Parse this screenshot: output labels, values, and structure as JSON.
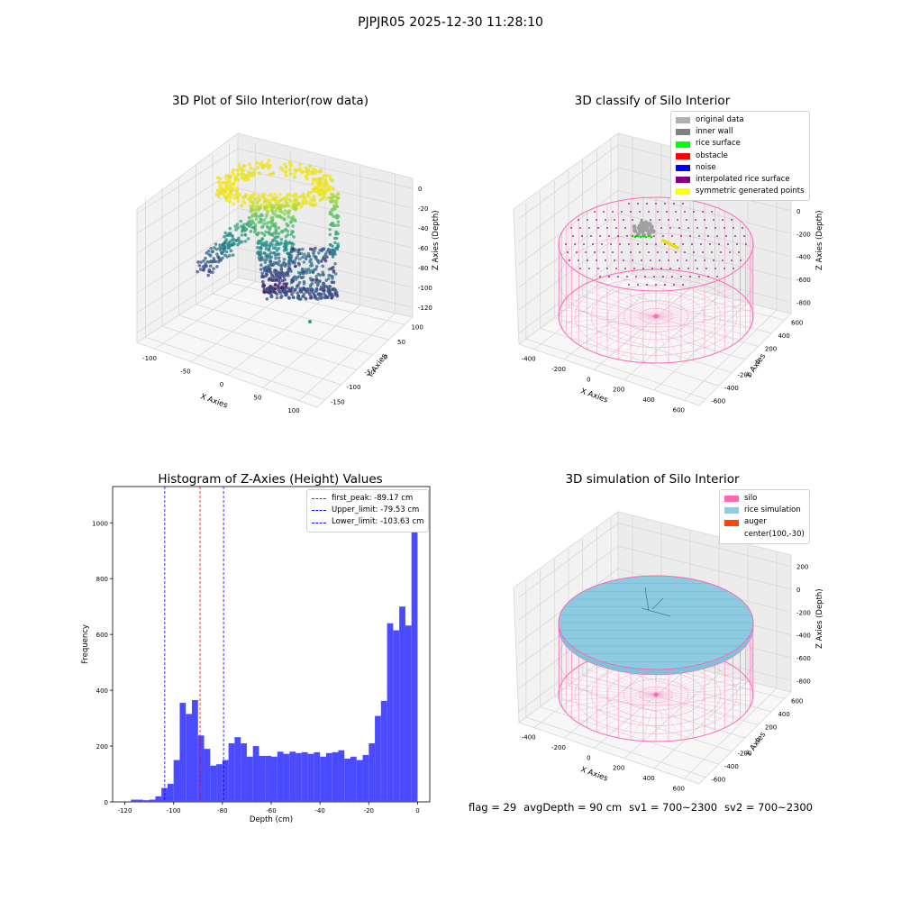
{
  "suptitle": "PJPJR05 2025-12-30 11:28:10",
  "chart_data": [
    {
      "type": "scatter",
      "title": "3D Plot of Silo Interior(row data)",
      "xlabel": "X Axies",
      "ylabel": "Y Axies",
      "zlabel": "Z Axies (Depth)",
      "xticks": [
        "-100",
        "-50",
        "0",
        "50",
        "100"
      ],
      "yticks": [
        "100",
        "50",
        "0",
        "-50",
        "-100",
        "-150"
      ],
      "zticks": [
        "0",
        "-20",
        "-40",
        "-60",
        "-80",
        "-100",
        "-120"
      ],
      "colormap": "viridis"
    },
    {
      "type": "scatter",
      "title": "3D classify of Silo Interior",
      "xlabel": "X Axies",
      "ylabel": "Y Axies",
      "zlabel": "Z Axies (Depth)",
      "xticks": [
        "-400",
        "-200",
        "0",
        "200",
        "400",
        "600"
      ],
      "yticks": [
        "600",
        "400",
        "200",
        "0",
        "-200",
        "-400",
        "-600"
      ],
      "zticks": [
        "200",
        "0",
        "-200",
        "-400",
        "-600",
        "-800"
      ],
      "legend": [
        {
          "label": "original data",
          "color": "#b0b0b0"
        },
        {
          "label": "inner wall",
          "color": "#808080"
        },
        {
          "label": "rice surface",
          "color": "#00ff00"
        },
        {
          "label": "obstacle",
          "color": "#ff0000"
        },
        {
          "label": "noise",
          "color": "#0000ff"
        },
        {
          "label": "interpolated rice surface",
          "color": "#800080"
        },
        {
          "label": "symmetric generated points",
          "color": "#ffff00"
        }
      ]
    },
    {
      "type": "bar",
      "title": "Histogram of Z-Axies (Height) Values",
      "xlabel": "Depth (cm)",
      "ylabel": "Frequency",
      "xlim": [
        -125,
        5
      ],
      "ylim": [
        0,
        1130
      ],
      "xticks": [
        -120,
        -100,
        -80,
        -60,
        -40,
        -20,
        0
      ],
      "yticks": [
        0,
        200,
        400,
        600,
        800,
        1000
      ],
      "bar_color": "#4a4aff",
      "bin_width": 2.5,
      "bin_start": -122.5,
      "values": [
        2,
        0,
        8,
        8,
        6,
        8,
        20,
        50,
        65,
        150,
        355,
        315,
        365,
        238,
        190,
        130,
        135,
        150,
        210,
        232,
        210,
        162,
        200,
        165,
        165,
        162,
        180,
        172,
        180,
        175,
        178,
        172,
        178,
        162,
        175,
        178,
        185,
        155,
        162,
        150,
        168,
        210,
        308,
        362,
        640,
        615,
        700,
        632,
        1080
      ],
      "vlines": [
        {
          "x": -89.17,
          "color": "#ff0000",
          "label": "first_peak: -89.17 cm"
        },
        {
          "x": -79.53,
          "color": "#0000ff",
          "label": "Upper_limit: -79.53 cm"
        },
        {
          "x": -103.63,
          "color": "#0000ff",
          "label": "Lower_limit: -103.63 cm"
        }
      ]
    },
    {
      "type": "scatter",
      "title": "3D simulation of Silo Interior",
      "xlabel": "X Axies",
      "ylabel": "Y Axies",
      "zlabel": "Z Axies (Depth)",
      "xticks": [
        "-400",
        "-200",
        "0",
        "200",
        "400",
        "600"
      ],
      "yticks": [
        "600",
        "400",
        "200",
        "0",
        "-200",
        "-400",
        "-600"
      ],
      "zticks": [
        "200",
        "0",
        "-200",
        "-400",
        "-600",
        "-800"
      ],
      "legend": [
        {
          "label": "silo",
          "color": "#ff69b4"
        },
        {
          "label": "rice simulation",
          "color": "#87ceeb"
        },
        {
          "label": "auger",
          "color": "#ff4500"
        },
        {
          "label": "center(100,-30)",
          "color": "#ffffff"
        }
      ]
    }
  ],
  "status": {
    "flag": "flag = 29",
    "avg": "avgDepth = 90 cm",
    "sv1": "sv1 = 700~2300",
    "sv2": "sv2 = 700~2300"
  }
}
